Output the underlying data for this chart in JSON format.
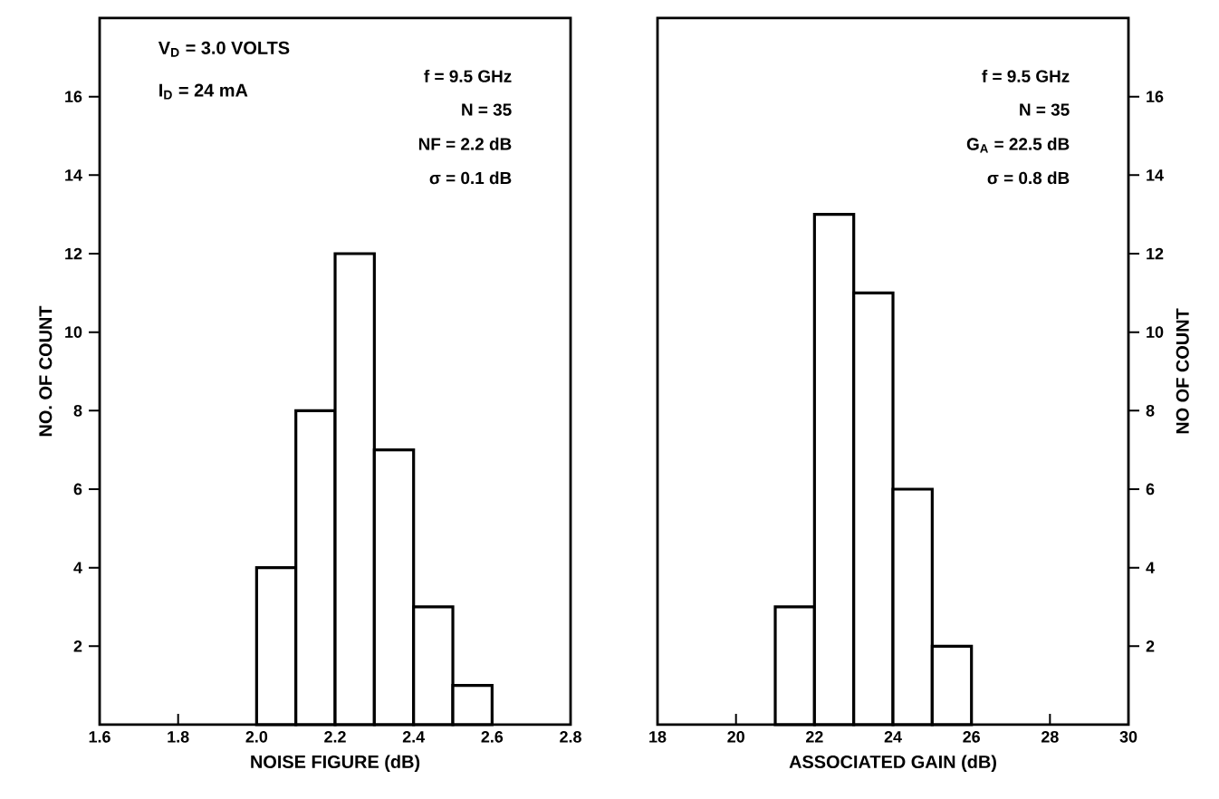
{
  "chart_data": [
    {
      "type": "histogram",
      "xlabel": "NOISE FIGURE (dB)",
      "ylabel": "NO. OF COUNT",
      "bins": [
        2.0,
        2.1,
        2.2,
        2.3,
        2.4,
        2.5,
        2.6
      ],
      "values": [
        4,
        8,
        12,
        7,
        3,
        1
      ],
      "xlim": [
        1.6,
        2.8
      ],
      "ylim": [
        0,
        18
      ],
      "xticks": [
        1.6,
        1.8,
        {
          "value": 2.0,
          "label": "2.0"
        },
        2.2,
        2.4,
        2.6,
        2.8
      ],
      "yticks": [
        2,
        4,
        6,
        8,
        10,
        12,
        14,
        16
      ],
      "annotations": [
        "V$_{D}$ = 3.0 VOLTS",
        "I$_{D}$ = 24 mA",
        "f = 9.5 GHz",
        "N = 35",
        "NF = 2.2 dB",
        "σ = 0.1 dB"
      ]
    },
    {
      "type": "histogram",
      "xlabel": "ASSOCIATED GAIN (dB)",
      "ylabel": "NO OF COUNT",
      "bins": [
        21,
        22,
        23,
        24,
        25,
        26
      ],
      "values": [
        3,
        13,
        11,
        6,
        2
      ],
      "xlim": [
        18,
        30
      ],
      "ylim": [
        0,
        18
      ],
      "xticks": [
        18,
        20,
        22,
        24,
        26,
        28,
        30
      ],
      "yticks": [
        2,
        4,
        6,
        8,
        10,
        12,
        14,
        16
      ],
      "annotations": [
        "f = 9.5 GHz",
        "N = 35",
        "G$_{A}$ = 22.5 dB",
        "σ = 0.8 dB"
      ]
    }
  ]
}
